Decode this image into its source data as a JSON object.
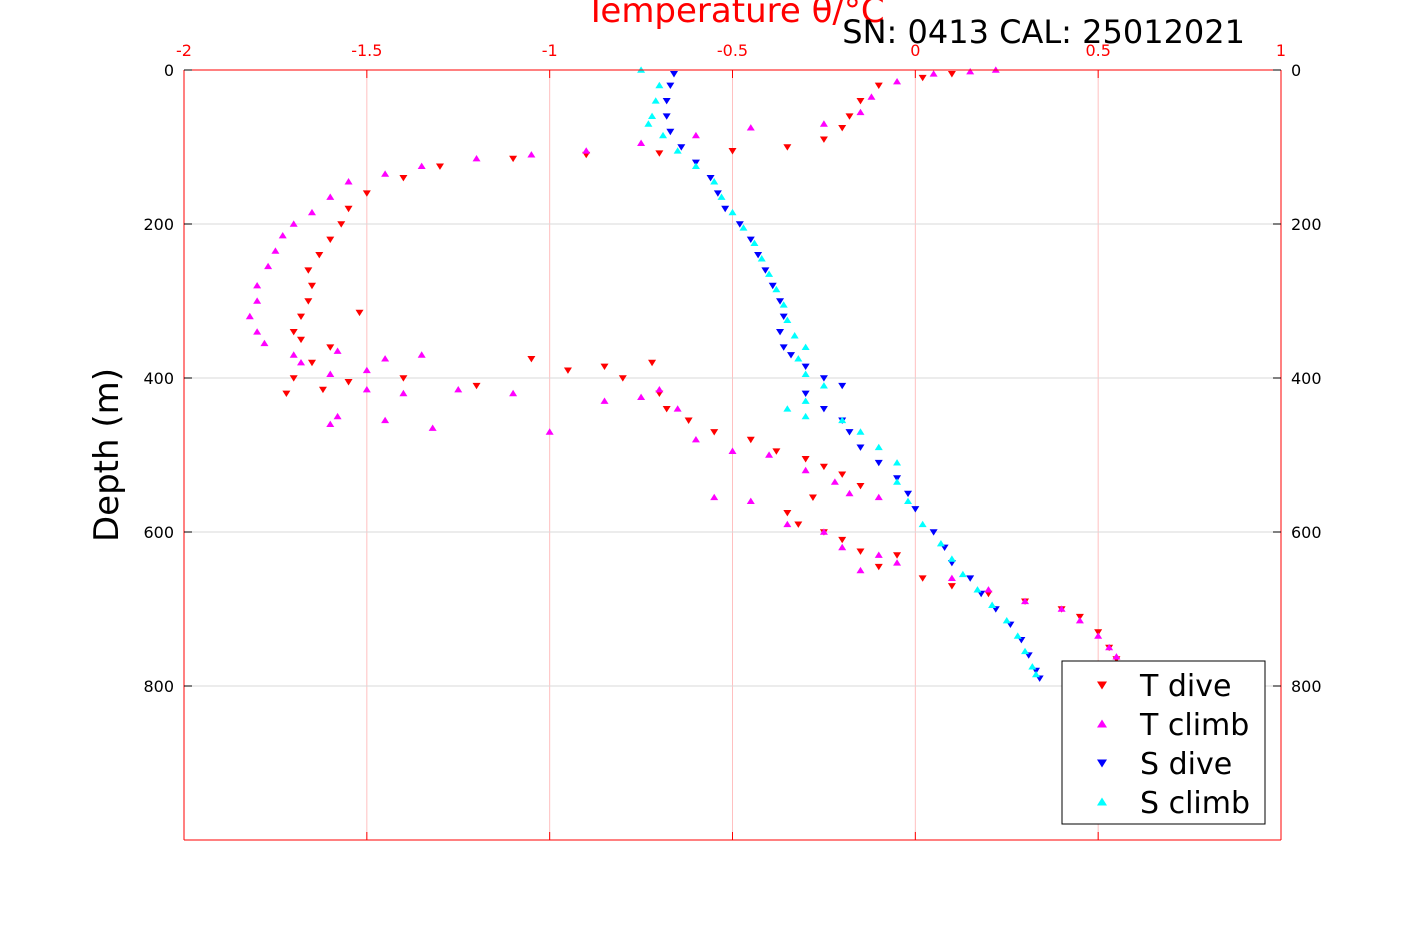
{
  "chart_data": {
    "type": "scatter",
    "title": "",
    "xlabel": "Temperature θ/°C",
    "ylabel": "Depth (m)",
    "annotation": "SN: 0413  CAL: 25012021",
    "xlim": [
      -2,
      1
    ],
    "ylim": [
      0,
      1000
    ],
    "y_reversed": true,
    "x_axis_position": "top",
    "y_axis_mirrored": true,
    "x_ticks": [
      -2,
      -1.5,
      -1,
      -0.5,
      0,
      0.5,
      1
    ],
    "x_tick_labels": [
      "-2",
      "-1.5",
      "-1",
      "-0.5",
      "0",
      "0.5",
      "1"
    ],
    "y_ticks": [
      0,
      200,
      400,
      600,
      800
    ],
    "y_tick_labels": [
      "0",
      "200",
      "400",
      "600",
      "800"
    ],
    "grid": true,
    "legend_position": "bottom-right",
    "colors": {
      "axis_x": "#ff0000",
      "axis_y": "#000000",
      "grid_x": "#ffc0c0",
      "grid_y": "#d9d9d9"
    },
    "series": [
      {
        "name": "T dive",
        "color": "#ff0000",
        "marker": "triangle-down",
        "points": [
          [
            0.1,
            5
          ],
          [
            0.02,
            10
          ],
          [
            -0.1,
            20
          ],
          [
            -0.15,
            40
          ],
          [
            -0.18,
            60
          ],
          [
            -0.2,
            75
          ],
          [
            -0.25,
            90
          ],
          [
            -0.35,
            100
          ],
          [
            -0.5,
            105
          ],
          [
            -0.7,
            108
          ],
          [
            -0.9,
            110
          ],
          [
            -1.1,
            115
          ],
          [
            -1.3,
            125
          ],
          [
            -1.4,
            140
          ],
          [
            -1.5,
            160
          ],
          [
            -1.55,
            180
          ],
          [
            -1.57,
            200
          ],
          [
            -1.6,
            220
          ],
          [
            -1.63,
            240
          ],
          [
            -1.66,
            260
          ],
          [
            -1.65,
            280
          ],
          [
            -1.66,
            300
          ],
          [
            -1.68,
            320
          ],
          [
            -1.7,
            340
          ],
          [
            -1.68,
            350
          ],
          [
            -1.52,
            315
          ],
          [
            -1.6,
            360
          ],
          [
            -1.65,
            380
          ],
          [
            -1.7,
            400
          ],
          [
            -1.72,
            420
          ],
          [
            -1.62,
            415
          ],
          [
            -1.55,
            405
          ],
          [
            -1.4,
            400
          ],
          [
            -1.2,
            410
          ],
          [
            -1.05,
            375
          ],
          [
            -0.95,
            390
          ],
          [
            -0.85,
            385
          ],
          [
            -0.8,
            400
          ],
          [
            -0.72,
            380
          ],
          [
            -0.7,
            420
          ],
          [
            -0.68,
            440
          ],
          [
            -0.62,
            455
          ],
          [
            -0.55,
            470
          ],
          [
            -0.45,
            480
          ],
          [
            -0.38,
            495
          ],
          [
            -0.3,
            505
          ],
          [
            -0.25,
            515
          ],
          [
            -0.2,
            525
          ],
          [
            -0.15,
            540
          ],
          [
            -0.28,
            555
          ],
          [
            -0.35,
            575
          ],
          [
            -0.32,
            590
          ],
          [
            -0.25,
            600
          ],
          [
            -0.2,
            610
          ],
          [
            -0.15,
            625
          ],
          [
            -0.1,
            645
          ],
          [
            -0.05,
            630
          ],
          [
            0.02,
            660
          ],
          [
            0.1,
            670
          ],
          [
            0.2,
            680
          ],
          [
            0.3,
            690
          ],
          [
            0.4,
            700
          ],
          [
            0.45,
            710
          ],
          [
            0.5,
            730
          ],
          [
            0.53,
            750
          ],
          [
            0.55,
            765
          ]
        ]
      },
      {
        "name": "T climb",
        "color": "#ff00ff",
        "marker": "triangle-up",
        "points": [
          [
            0.22,
            0
          ],
          [
            0.15,
            2
          ],
          [
            0.05,
            5
          ],
          [
            -0.05,
            15
          ],
          [
            -0.12,
            35
          ],
          [
            -0.15,
            55
          ],
          [
            -0.25,
            70
          ],
          [
            -0.45,
            75
          ],
          [
            -0.6,
            85
          ],
          [
            -0.75,
            95
          ],
          [
            -0.9,
            105
          ],
          [
            -1.05,
            110
          ],
          [
            -1.2,
            115
          ],
          [
            -1.35,
            125
          ],
          [
            -1.45,
            135
          ],
          [
            -1.55,
            145
          ],
          [
            -1.6,
            165
          ],
          [
            -1.65,
            185
          ],
          [
            -1.7,
            200
          ],
          [
            -1.73,
            215
          ],
          [
            -1.75,
            235
          ],
          [
            -1.77,
            255
          ],
          [
            -1.8,
            280
          ],
          [
            -1.8,
            300
          ],
          [
            -1.82,
            320
          ],
          [
            -1.8,
            340
          ],
          [
            -1.78,
            355
          ],
          [
            -1.7,
            370
          ],
          [
            -1.68,
            380
          ],
          [
            -1.58,
            365
          ],
          [
            -1.45,
            375
          ],
          [
            -1.35,
            370
          ],
          [
            -1.5,
            390
          ],
          [
            -1.6,
            395
          ],
          [
            -1.5,
            415
          ],
          [
            -1.4,
            420
          ],
          [
            -1.25,
            415
          ],
          [
            -1.1,
            420
          ],
          [
            -1.58,
            450
          ],
          [
            -1.6,
            460
          ],
          [
            -1.45,
            455
          ],
          [
            -1.32,
            465
          ],
          [
            -1.0,
            470
          ],
          [
            -0.85,
            430
          ],
          [
            -0.75,
            425
          ],
          [
            -0.7,
            415
          ],
          [
            -0.65,
            440
          ],
          [
            -0.6,
            480
          ],
          [
            -0.5,
            495
          ],
          [
            -0.4,
            500
          ],
          [
            -0.3,
            520
          ],
          [
            -0.22,
            535
          ],
          [
            -0.18,
            550
          ],
          [
            -0.1,
            555
          ],
          [
            -0.55,
            555
          ],
          [
            -0.45,
            560
          ],
          [
            -0.35,
            590
          ],
          [
            -0.25,
            600
          ],
          [
            -0.2,
            620
          ],
          [
            -0.1,
            630
          ],
          [
            -0.05,
            640
          ],
          [
            -0.15,
            650
          ],
          [
            0.1,
            660
          ],
          [
            0.2,
            675
          ],
          [
            0.3,
            690
          ],
          [
            0.4,
            700
          ],
          [
            0.45,
            715
          ],
          [
            0.5,
            735
          ],
          [
            0.53,
            750
          ],
          [
            0.55,
            762
          ]
        ]
      },
      {
        "name": "S dive",
        "color": "#0000ff",
        "marker": "triangle-down",
        "points": [
          [
            -0.66,
            5
          ],
          [
            -0.67,
            20
          ],
          [
            -0.68,
            40
          ],
          [
            -0.68,
            60
          ],
          [
            -0.67,
            80
          ],
          [
            -0.64,
            100
          ],
          [
            -0.6,
            120
          ],
          [
            -0.56,
            140
          ],
          [
            -0.54,
            160
          ],
          [
            -0.52,
            180
          ],
          [
            -0.48,
            200
          ],
          [
            -0.45,
            220
          ],
          [
            -0.43,
            240
          ],
          [
            -0.41,
            260
          ],
          [
            -0.39,
            280
          ],
          [
            -0.37,
            300
          ],
          [
            -0.36,
            320
          ],
          [
            -0.37,
            340
          ],
          [
            -0.36,
            360
          ],
          [
            -0.34,
            370
          ],
          [
            -0.3,
            385
          ],
          [
            -0.25,
            400
          ],
          [
            -0.2,
            410
          ],
          [
            -0.3,
            420
          ],
          [
            -0.25,
            440
          ],
          [
            -0.2,
            455
          ],
          [
            -0.18,
            470
          ],
          [
            -0.15,
            490
          ],
          [
            -0.1,
            510
          ],
          [
            -0.05,
            530
          ],
          [
            -0.02,
            550
          ],
          [
            0.0,
            570
          ],
          [
            0.05,
            600
          ],
          [
            0.08,
            620
          ],
          [
            0.1,
            640
          ],
          [
            0.15,
            660
          ],
          [
            0.18,
            680
          ],
          [
            0.22,
            700
          ],
          [
            0.26,
            720
          ],
          [
            0.29,
            740
          ],
          [
            0.31,
            760
          ],
          [
            0.33,
            780
          ],
          [
            0.34,
            790
          ]
        ]
      },
      {
        "name": "S climb",
        "color": "#00ffff",
        "marker": "triangle-up",
        "points": [
          [
            -0.75,
            0
          ],
          [
            -0.7,
            20
          ],
          [
            -0.71,
            40
          ],
          [
            -0.72,
            60
          ],
          [
            -0.73,
            70
          ],
          [
            -0.69,
            85
          ],
          [
            -0.65,
            105
          ],
          [
            -0.6,
            125
          ],
          [
            -0.55,
            145
          ],
          [
            -0.53,
            165
          ],
          [
            -0.5,
            185
          ],
          [
            -0.47,
            205
          ],
          [
            -0.44,
            225
          ],
          [
            -0.42,
            245
          ],
          [
            -0.4,
            265
          ],
          [
            -0.38,
            285
          ],
          [
            -0.36,
            305
          ],
          [
            -0.35,
            325
          ],
          [
            -0.33,
            345
          ],
          [
            -0.3,
            360
          ],
          [
            -0.32,
            375
          ],
          [
            -0.3,
            395
          ],
          [
            -0.25,
            410
          ],
          [
            -0.3,
            430
          ],
          [
            -0.35,
            440
          ],
          [
            -0.3,
            450
          ],
          [
            -0.2,
            455
          ],
          [
            -0.15,
            470
          ],
          [
            -0.1,
            490
          ],
          [
            -0.05,
            510
          ],
          [
            -0.05,
            535
          ],
          [
            -0.02,
            560
          ],
          [
            0.02,
            590
          ],
          [
            0.07,
            615
          ],
          [
            0.1,
            635
          ],
          [
            0.13,
            655
          ],
          [
            0.17,
            675
          ],
          [
            0.21,
            695
          ],
          [
            0.25,
            715
          ],
          [
            0.28,
            735
          ],
          [
            0.3,
            755
          ],
          [
            0.32,
            775
          ],
          [
            0.33,
            785
          ]
        ]
      }
    ]
  }
}
